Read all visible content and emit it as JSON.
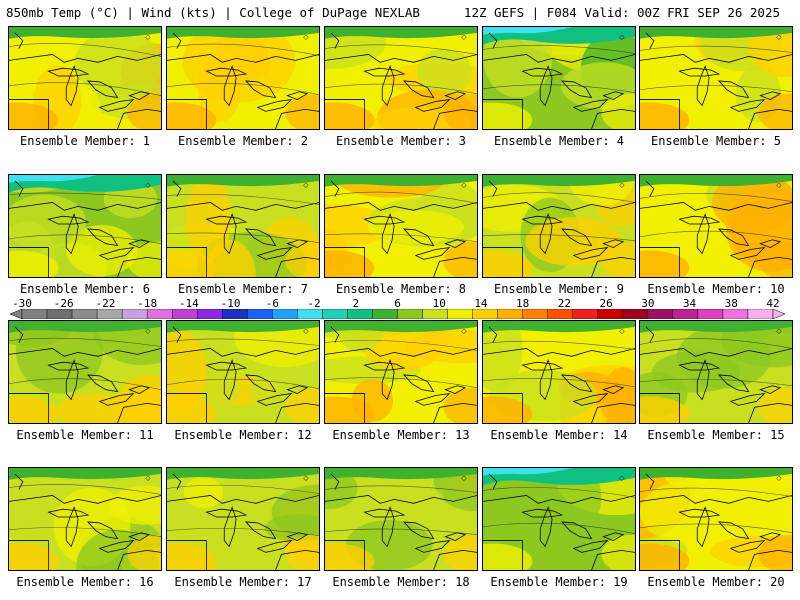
{
  "header": {
    "left": "850mb Temp (°C) | Wind (kts) | College of DuPage NEXLAB",
    "right": "12Z GEFS | F084 Valid: 00Z FRI SEP 26 2025"
  },
  "colorbar": {
    "ticks": [
      "-30",
      "-26",
      "-22",
      "-18",
      "-14",
      "-10",
      "-6",
      "-2",
      "2",
      "6",
      "10",
      "14",
      "18",
      "22",
      "26",
      "30",
      "34",
      "38",
      "42"
    ],
    "colors": [
      "#808080",
      "#6f6f6f",
      "#8c8c8c",
      "#a8a8a8",
      "#c8a0e0",
      "#e070e0",
      "#c040d0",
      "#8a2be2",
      "#2030c0",
      "#2060f0",
      "#20a0ff",
      "#40e0f0",
      "#20d0b0",
      "#10c080",
      "#40b030",
      "#8cc820",
      "#c8e020",
      "#f0f000",
      "#ffd000",
      "#ffb000",
      "#ff8000",
      "#ff5000",
      "#f02020",
      "#c80000",
      "#a00020",
      "#a01060",
      "#c02090",
      "#e040c0",
      "#f070e0",
      "#f8b0f0"
    ]
  },
  "members": [
    {
      "label": "Ensemble Member: 1",
      "shade": "warm"
    },
    {
      "label": "Ensemble Member: 2",
      "shade": "warm"
    },
    {
      "label": "Ensemble Member: 3",
      "shade": "warm"
    },
    {
      "label": "Ensemble Member: 4",
      "shade": "cool"
    },
    {
      "label": "Ensemble Member: 5",
      "shade": "warm"
    },
    {
      "label": "Ensemble Member: 6",
      "shade": "cool"
    },
    {
      "label": "Ensemble Member: 7",
      "shade": "mild"
    },
    {
      "label": "Ensemble Member: 8",
      "shade": "warm"
    },
    {
      "label": "Ensemble Member: 9",
      "shade": "mild"
    },
    {
      "label": "Ensemble Member: 10",
      "shade": "warm"
    },
    {
      "label": "Ensemble Member: 11",
      "shade": "mild"
    },
    {
      "label": "Ensemble Member: 12",
      "shade": "mild"
    },
    {
      "label": "Ensemble Member: 13",
      "shade": "warm"
    },
    {
      "label": "Ensemble Member: 14",
      "shade": "warm"
    },
    {
      "label": "Ensemble Member: 15",
      "shade": "mild"
    },
    {
      "label": "Ensemble Member: 16",
      "shade": "mild"
    },
    {
      "label": "Ensemble Member: 17",
      "shade": "mild"
    },
    {
      "label": "Ensemble Member: 18",
      "shade": "mild"
    },
    {
      "label": "Ensemble Member: 19",
      "shade": "cool"
    },
    {
      "label": "Ensemble Member: 20",
      "shade": "warm"
    }
  ]
}
